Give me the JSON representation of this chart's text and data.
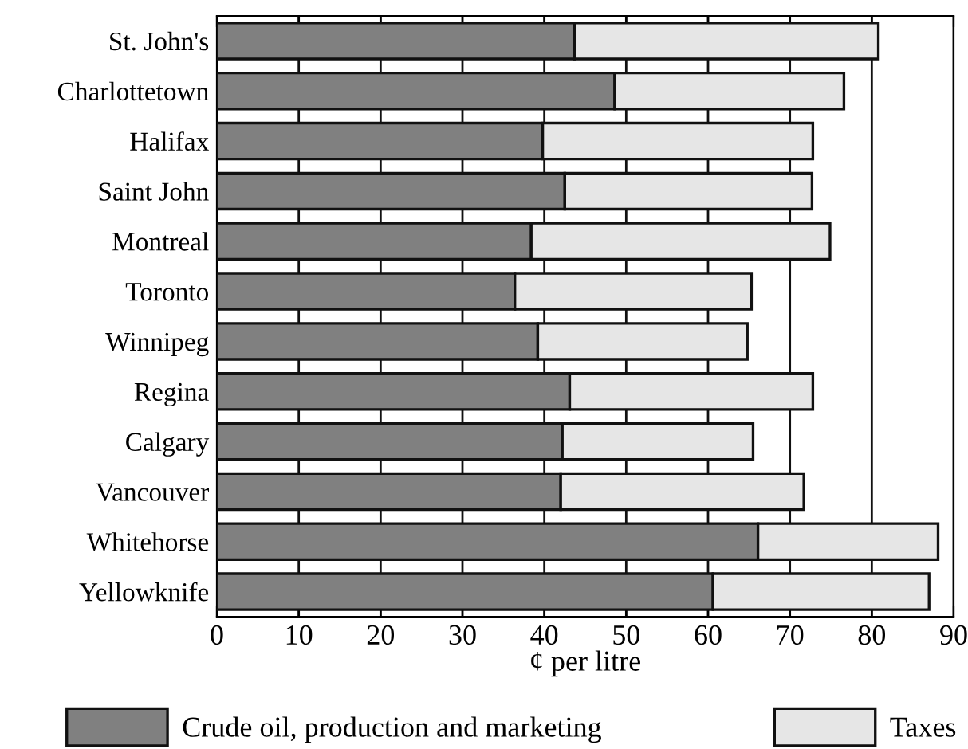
{
  "chart_data": {
    "type": "bar",
    "orientation": "horizontal",
    "stacked": true,
    "xlabel": "¢ per litre",
    "categories": [
      "St. John's",
      "Charlottetown",
      "Halifax",
      "Saint John",
      "Montreal",
      "Toronto",
      "Winnipeg",
      "Regina",
      "Calgary",
      "Vancouver",
      "Whitehorse",
      "Yellowknife"
    ],
    "series": [
      {
        "name": "Crude oil, production and marketing",
        "color": "#808080",
        "values": [
          43.7,
          48.6,
          39.8,
          42.5,
          38.4,
          36.4,
          39.2,
          43.1,
          42.2,
          42.0,
          66.1,
          60.6
        ]
      },
      {
        "name": "Taxes",
        "color": "#e6e6e6",
        "values": [
          37.1,
          28.0,
          33.0,
          30.2,
          36.5,
          28.9,
          25.6,
          29.7,
          23.3,
          29.7,
          22.0,
          26.4
        ]
      }
    ],
    "xlim": [
      0,
      90
    ],
    "xticks": [
      0,
      10,
      20,
      30,
      40,
      50,
      60,
      70,
      80,
      90
    ],
    "grid": "x",
    "legend": "bottom"
  }
}
